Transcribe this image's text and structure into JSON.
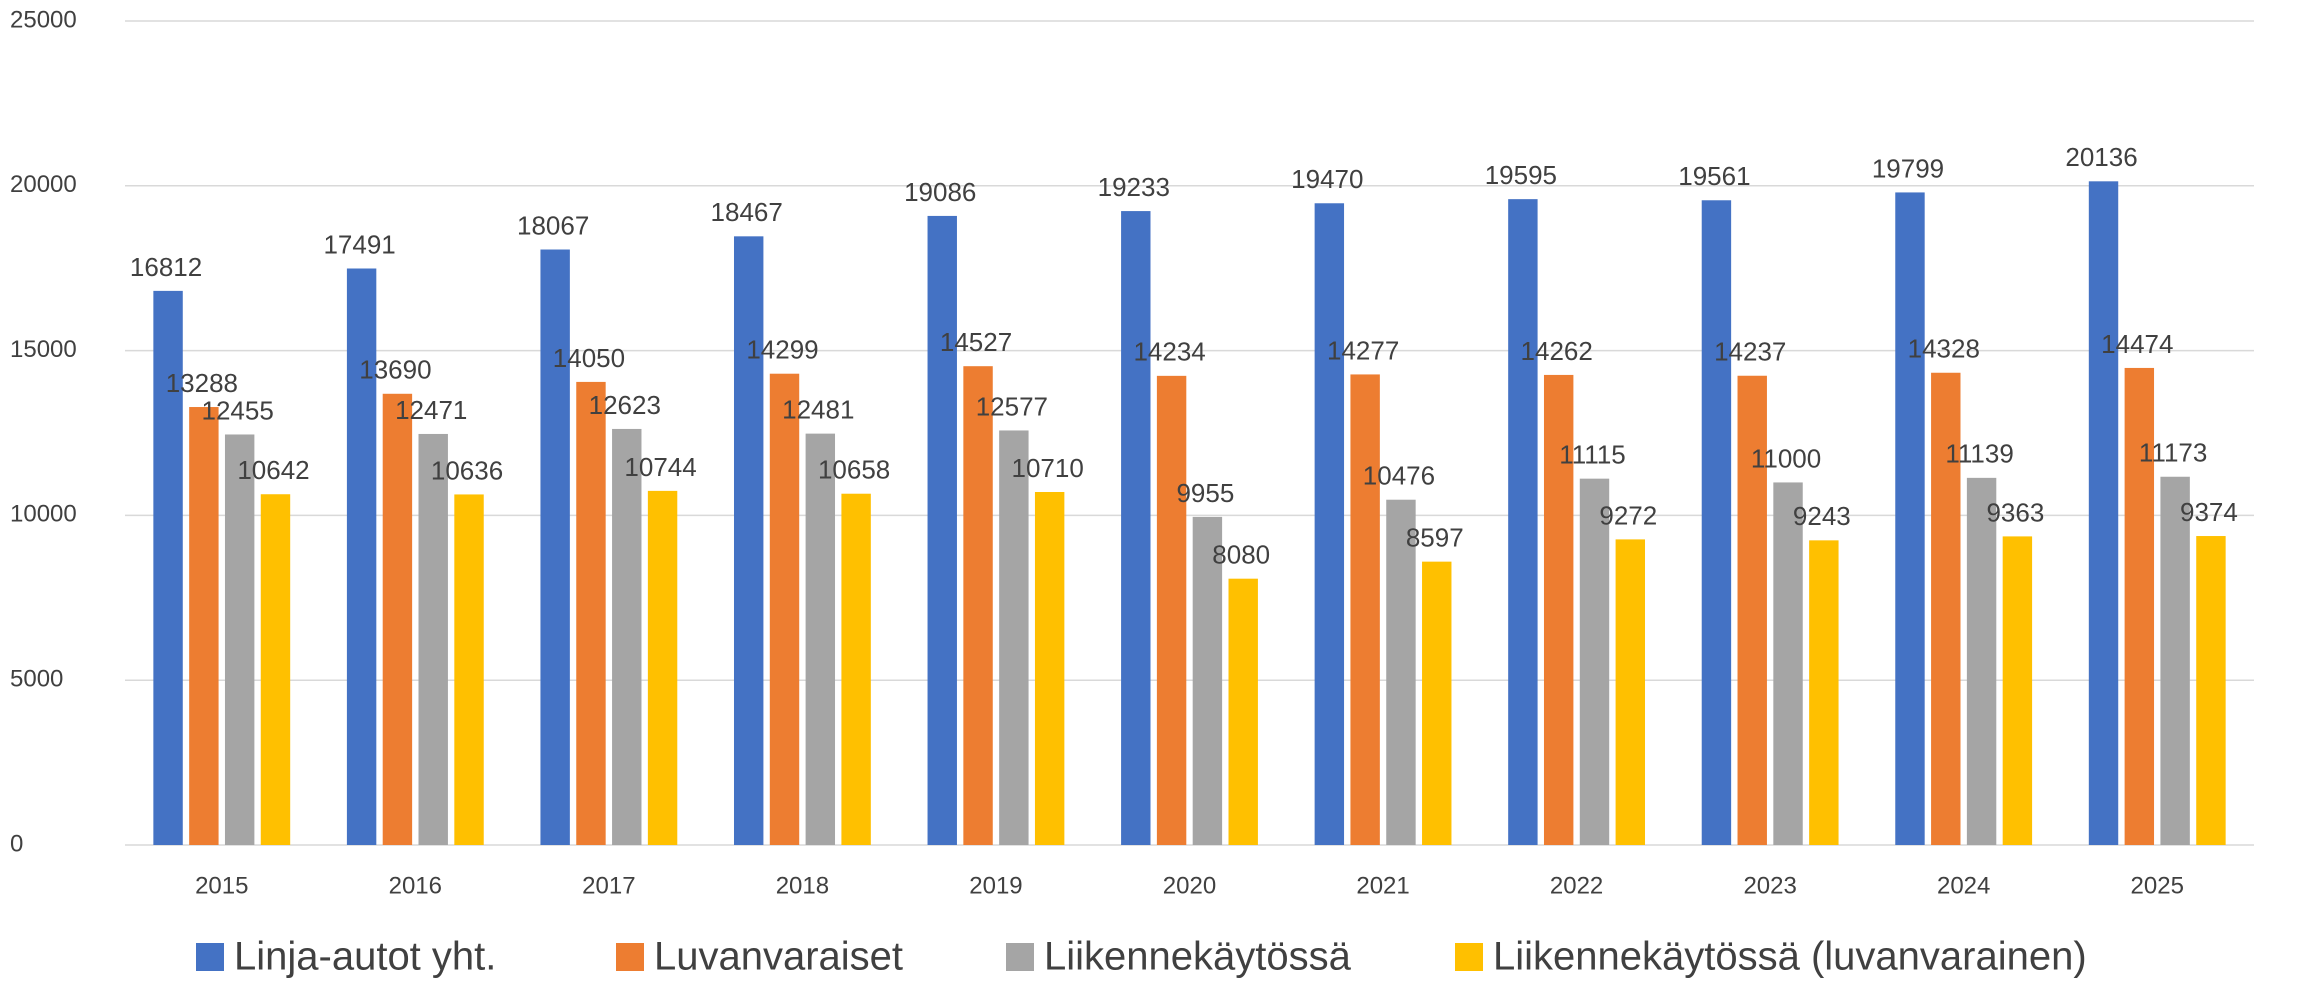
{
  "chart_data": {
    "type": "bar",
    "categories": [
      "2015",
      "2016",
      "2017",
      "2018",
      "2019",
      "2020",
      "2021",
      "2022",
      "2023",
      "2024",
      "2025"
    ],
    "series": [
      {
        "name": "Linja-autot yht.",
        "color": "#4472c4",
        "values": [
          16812,
          17491,
          18067,
          18467,
          19086,
          19233,
          19470,
          19595,
          19561,
          19799,
          20136
        ]
      },
      {
        "name": "Luvanvaraiset",
        "color": "#ed7d31",
        "values": [
          13288,
          13690,
          14050,
          14299,
          14527,
          14234,
          14277,
          14262,
          14237,
          14328,
          14474
        ]
      },
      {
        "name": "Liikennekäytössä",
        "color": "#a5a5a5",
        "values": [
          12455,
          12471,
          12623,
          12481,
          12577,
          9955,
          10476,
          11115,
          11000,
          11139,
          11173
        ]
      },
      {
        "name": "Liikennekäytössä (luvanvarainen)",
        "color": "#ffc000",
        "values": [
          10642,
          10636,
          10744,
          10658,
          10710,
          8080,
          8597,
          9272,
          9243,
          9363,
          9374
        ]
      }
    ],
    "ylim": [
      0,
      25000
    ],
    "yticks": [
      0,
      5000,
      10000,
      15000,
      20000,
      25000
    ],
    "grid": true,
    "legend": "bottom"
  }
}
